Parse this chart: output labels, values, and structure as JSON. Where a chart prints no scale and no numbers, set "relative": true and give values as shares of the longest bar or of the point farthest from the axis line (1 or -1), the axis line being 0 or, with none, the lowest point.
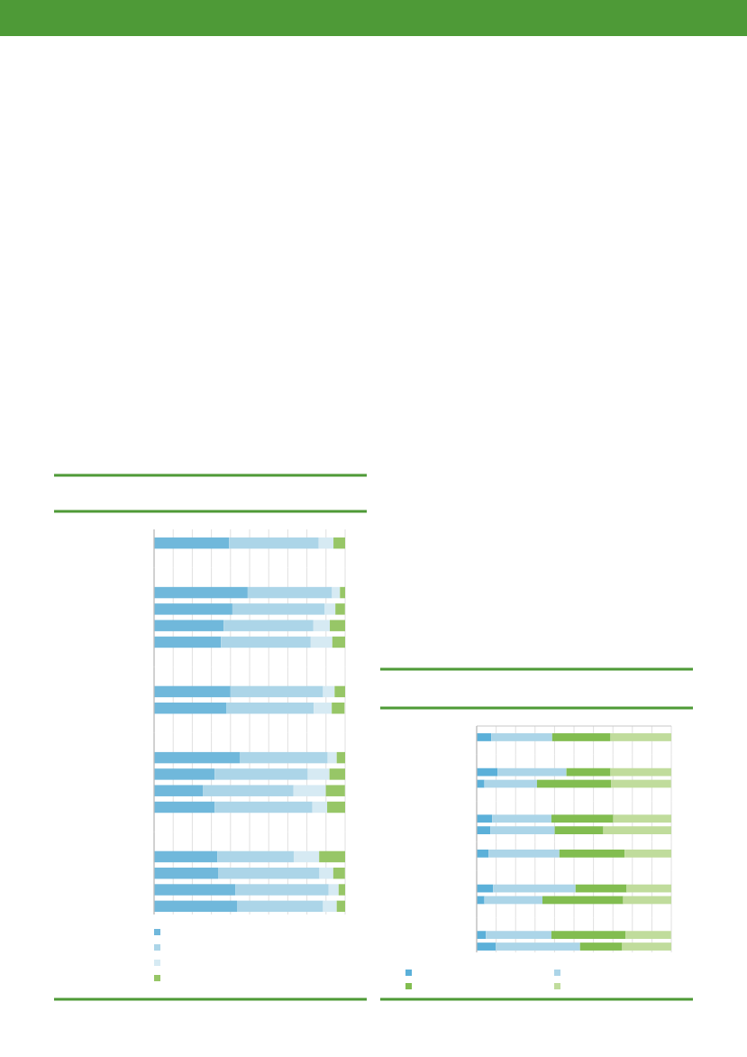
{
  "chart_data": [
    {
      "type": "bar",
      "orientation": "horizontal",
      "stacked": true,
      "relative": true,
      "grid": "x",
      "categories": [
        null
      ],
      "series": [
        {
          "color": "#70b8db",
          "values": [
            0.393
          ]
        },
        {
          "color": "#acd5e8",
          "values": [
            0.469
          ]
        },
        {
          "color": "#d6eaf3",
          "values": [
            0.077
          ]
        },
        {
          "color": "#97c667",
          "values": [
            0.061
          ]
        }
      ]
    },
    {
      "type": "bar",
      "orientation": "horizontal",
      "stacked": true,
      "relative": true,
      "grid": "x",
      "categories": [
        null,
        null,
        null,
        null
      ],
      "series": [
        {
          "color": "#70b8db",
          "values": [
            0.49,
            0.41,
            0.364,
            0.35
          ]
        },
        {
          "color": "#acd5e8",
          "values": [
            0.442,
            0.484,
            0.47,
            0.47
          ]
        },
        {
          "color": "#d6eaf3",
          "values": [
            0.041,
            0.055,
            0.086,
            0.113
          ]
        },
        {
          "color": "#97c667",
          "values": [
            0.027,
            0.05,
            0.08,
            0.067
          ]
        }
      ]
    },
    {
      "type": "bar",
      "orientation": "horizontal",
      "stacked": true,
      "relative": true,
      "grid": "x",
      "categories": [
        null,
        null
      ],
      "series": [
        {
          "color": "#70b8db",
          "values": [
            0.4,
            0.38
          ]
        },
        {
          "color": "#acd5e8",
          "values": [
            0.485,
            0.456
          ]
        },
        {
          "color": "#d6eaf3",
          "values": [
            0.06,
            0.094
          ]
        },
        {
          "color": "#97c667",
          "values": [
            0.055,
            0.067
          ]
        }
      ]
    },
    {
      "type": "bar",
      "orientation": "horizontal",
      "stacked": true,
      "relative": true,
      "grid": "x",
      "categories": [
        null,
        null,
        null,
        null
      ],
      "series": [
        {
          "color": "#70b8db",
          "values": [
            0.448,
            0.317,
            0.255,
            0.318
          ]
        },
        {
          "color": "#acd5e8",
          "values": [
            0.461,
            0.488,
            0.475,
            0.511
          ]
        },
        {
          "color": "#d6eaf3",
          "values": [
            0.047,
            0.113,
            0.169,
            0.077
          ]
        },
        {
          "color": "#97c667",
          "values": [
            0.044,
            0.082,
            0.1,
            0.094
          ]
        }
      ]
    },
    {
      "type": "bar",
      "orientation": "horizontal",
      "stacked": true,
      "relative": true,
      "grid": "x",
      "categories": [
        null,
        null,
        null,
        null
      ],
      "series": [
        {
          "color": "#70b8db",
          "values": [
            0.331,
            0.335,
            0.425,
            0.434
          ]
        },
        {
          "color": "#acd5e8",
          "values": [
            0.4,
            0.531,
            0.489,
            0.451
          ]
        },
        {
          "color": "#d6eaf3",
          "values": [
            0.133,
            0.072,
            0.052,
            0.071
          ]
        },
        {
          "color": "#97c667",
          "values": [
            0.136,
            0.061,
            0.034,
            0.044
          ]
        }
      ]
    },
    {
      "type": "bar",
      "orientation": "horizontal",
      "stacked": true,
      "relative": true,
      "grid": "x",
      "categories": [
        null
      ],
      "series": [
        {
          "color": "#5bb0d9",
          "values": [
            0.075
          ]
        },
        {
          "color": "#acd5e8",
          "values": [
            0.313
          ]
        },
        {
          "color": "#82bd50",
          "values": [
            0.3
          ]
        },
        {
          "color": "#c0dc9c",
          "values": [
            0.312
          ]
        }
      ]
    },
    {
      "type": "bar",
      "orientation": "horizontal",
      "stacked": true,
      "relative": true,
      "grid": "x",
      "categories": [
        null,
        null
      ],
      "series": [
        {
          "color": "#5bb0d9",
          "values": [
            0.108,
            0.04
          ]
        },
        {
          "color": "#acd5e8",
          "values": [
            0.353,
            0.27
          ]
        },
        {
          "color": "#82bd50",
          "values": [
            0.227,
            0.382
          ]
        },
        {
          "color": "#c0dc9c",
          "values": [
            0.312,
            0.307
          ]
        }
      ]
    },
    {
      "type": "bar",
      "orientation": "horizontal",
      "stacked": true,
      "relative": true,
      "grid": "x",
      "categories": [
        null,
        null
      ],
      "series": [
        {
          "color": "#5bb0d9",
          "values": [
            0.08,
            0.071
          ]
        },
        {
          "color": "#acd5e8",
          "values": [
            0.304,
            0.33
          ]
        },
        {
          "color": "#82bd50",
          "values": [
            0.318,
            0.25
          ]
        },
        {
          "color": "#c0dc9c",
          "values": [
            0.298,
            0.349
          ]
        }
      ]
    },
    {
      "type": "bar",
      "orientation": "horizontal",
      "stacked": true,
      "relative": true,
      "grid": "x",
      "categories": [
        null
      ],
      "series": [
        {
          "color": "#5bb0d9",
          "values": [
            0.061
          ]
        },
        {
          "color": "#acd5e8",
          "values": [
            0.364
          ]
        },
        {
          "color": "#82bd50",
          "values": [
            0.336
          ]
        },
        {
          "color": "#c0dc9c",
          "values": [
            0.239
          ]
        }
      ]
    },
    {
      "type": "bar",
      "orientation": "horizontal",
      "stacked": true,
      "relative": true,
      "grid": "x",
      "categories": [
        null,
        null
      ],
      "series": [
        {
          "color": "#5bb0d9",
          "values": [
            0.084,
            0.04
          ]
        },
        {
          "color": "#acd5e8",
          "values": [
            0.424,
            0.298
          ]
        },
        {
          "color": "#82bd50",
          "values": [
            0.263,
            0.415
          ]
        },
        {
          "color": "#c0dc9c",
          "values": [
            0.229,
            0.247
          ]
        }
      ]
    },
    {
      "type": "bar",
      "orientation": "horizontal",
      "stacked": true,
      "relative": true,
      "grid": "x",
      "categories": [
        null,
        null
      ],
      "series": [
        {
          "color": "#5bb0d9",
          "values": [
            0.048,
            0.098
          ]
        },
        {
          "color": "#acd5e8",
          "values": [
            0.336,
            0.433
          ]
        },
        {
          "color": "#82bd50",
          "values": [
            0.382,
            0.217
          ]
        },
        {
          "color": "#c0dc9c",
          "values": [
            0.233,
            0.252
          ]
        }
      ]
    }
  ]
}
